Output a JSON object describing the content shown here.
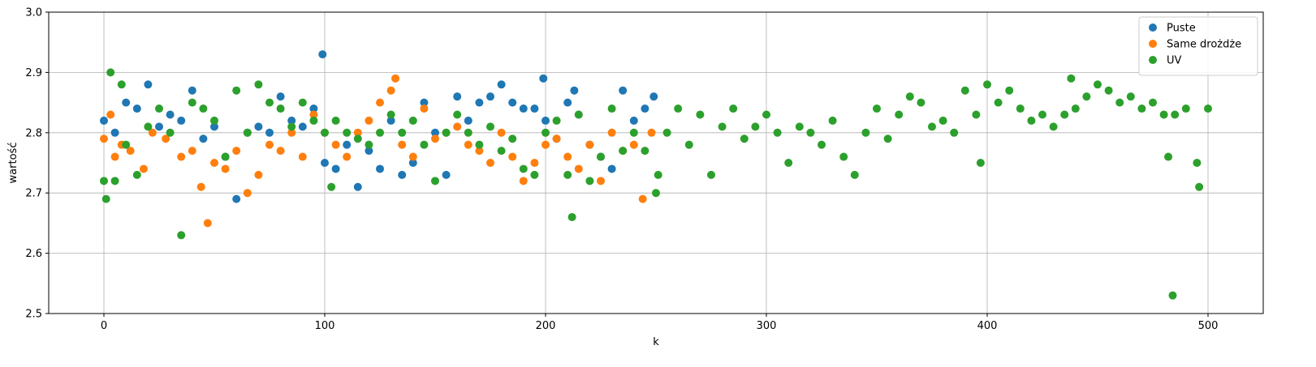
{
  "chart_data": {
    "type": "scatter",
    "title": "",
    "xlabel": "k",
    "ylabel": "wartość",
    "xlim": [
      -25,
      525
    ],
    "ylim": [
      2.5,
      3.0
    ],
    "xticks": [
      "0",
      "100",
      "200",
      "300",
      "400",
      "500"
    ],
    "yticks": [
      "2.5",
      "2.6",
      "2.7",
      "2.8",
      "2.9",
      "3.0"
    ],
    "grid": true,
    "legend_position": "top-right",
    "colors": {
      "Puste": "#1f77b4",
      "Same drożdże": "#ff7f0e",
      "UV": "#2ca02c"
    },
    "series": [
      {
        "name": "Puste",
        "x": [
          0,
          5,
          10,
          15,
          20,
          25,
          30,
          35,
          40,
          45,
          50,
          55,
          60,
          65,
          70,
          75,
          80,
          85,
          90,
          95,
          99,
          100,
          105,
          110,
          115,
          120,
          125,
          130,
          135,
          140,
          145,
          150,
          155,
          160,
          165,
          170,
          175,
          180,
          185,
          190,
          195,
          199,
          200,
          205,
          210,
          213,
          215,
          220,
          225,
          230,
          235,
          240,
          245,
          249
        ],
        "y": [
          2.82,
          2.8,
          2.85,
          2.84,
          2.88,
          2.81,
          2.83,
          2.82,
          2.87,
          2.79,
          2.81,
          2.76,
          2.69,
          2.8,
          2.81,
          2.8,
          2.86,
          2.82,
          2.81,
          2.84,
          2.93,
          2.75,
          2.74,
          2.78,
          2.71,
          2.77,
          2.74,
          2.82,
          2.73,
          2.75,
          2.85,
          2.8,
          2.73,
          2.86,
          2.82,
          2.85,
          2.86,
          2.88,
          2.85,
          2.84,
          2.84,
          2.89,
          2.82,
          2.79,
          2.85,
          2.87,
          2.83,
          2.78,
          2.76,
          2.74,
          2.87,
          2.82,
          2.84,
          2.86
        ]
      },
      {
        "name": "Same drożdże",
        "x": [
          0,
          3,
          5,
          8,
          12,
          18,
          22,
          28,
          35,
          40,
          44,
          47,
          50,
          55,
          60,
          65,
          70,
          75,
          80,
          85,
          90,
          95,
          100,
          105,
          110,
          115,
          120,
          125,
          130,
          132,
          135,
          140,
          145,
          150,
          155,
          160,
          165,
          170,
          175,
          180,
          185,
          190,
          195,
          200,
          205,
          210,
          215,
          220,
          225,
          230,
          235,
          240,
          244,
          248
        ],
        "y": [
          2.79,
          2.83,
          2.76,
          2.78,
          2.77,
          2.74,
          2.8,
          2.79,
          2.76,
          2.77,
          2.71,
          2.65,
          2.75,
          2.74,
          2.77,
          2.7,
          2.73,
          2.78,
          2.77,
          2.8,
          2.76,
          2.83,
          2.8,
          2.78,
          2.76,
          2.8,
          2.82,
          2.85,
          2.87,
          2.89,
          2.78,
          2.76,
          2.84,
          2.79,
          2.8,
          2.81,
          2.78,
          2.77,
          2.75,
          2.8,
          2.76,
          2.72,
          2.75,
          2.78,
          2.79,
          2.76,
          2.74,
          2.78,
          2.72,
          2.8,
          2.77,
          2.78,
          2.69,
          2.8
        ]
      },
      {
        "name": "UV",
        "x": [
          0,
          1,
          3,
          5,
          8,
          10,
          15,
          20,
          25,
          30,
          35,
          40,
          45,
          50,
          55,
          60,
          65,
          70,
          75,
          80,
          85,
          90,
          95,
          100,
          103,
          105,
          110,
          115,
          120,
          125,
          130,
          135,
          140,
          145,
          150,
          155,
          160,
          165,
          170,
          175,
          180,
          185,
          190,
          195,
          200,
          205,
          210,
          212,
          215,
          220,
          225,
          230,
          235,
          240,
          245,
          250,
          251,
          255,
          260,
          265,
          270,
          275,
          280,
          285,
          290,
          295,
          300,
          305,
          310,
          315,
          320,
          325,
          330,
          335,
          340,
          345,
          350,
          355,
          360,
          365,
          370,
          375,
          380,
          385,
          390,
          395,
          397,
          400,
          405,
          410,
          415,
          420,
          425,
          430,
          435,
          438,
          440,
          445,
          450,
          455,
          460,
          465,
          470,
          475,
          480,
          482,
          484,
          485,
          490,
          495,
          496,
          500
        ],
        "y": [
          2.72,
          2.69,
          2.9,
          2.72,
          2.88,
          2.78,
          2.73,
          2.81,
          2.84,
          2.8,
          2.63,
          2.85,
          2.84,
          2.82,
          2.76,
          2.87,
          2.8,
          2.88,
          2.85,
          2.84,
          2.81,
          2.85,
          2.82,
          2.8,
          2.71,
          2.82,
          2.8,
          2.79,
          2.78,
          2.8,
          2.83,
          2.8,
          2.82,
          2.78,
          2.72,
          2.8,
          2.83,
          2.8,
          2.78,
          2.81,
          2.77,
          2.79,
          2.74,
          2.73,
          2.8,
          2.82,
          2.73,
          2.66,
          2.83,
          2.72,
          2.76,
          2.84,
          2.77,
          2.8,
          2.77,
          2.7,
          2.73,
          2.8,
          2.84,
          2.78,
          2.83,
          2.73,
          2.81,
          2.84,
          2.79,
          2.81,
          2.83,
          2.8,
          2.75,
          2.81,
          2.8,
          2.78,
          2.82,
          2.76,
          2.73,
          2.8,
          2.84,
          2.79,
          2.83,
          2.86,
          2.85,
          2.81,
          2.82,
          2.8,
          2.87,
          2.83,
          2.75,
          2.88,
          2.85,
          2.87,
          2.84,
          2.82,
          2.83,
          2.81,
          2.83,
          2.89,
          2.84,
          2.86,
          2.88,
          2.87,
          2.85,
          2.86,
          2.84,
          2.85,
          2.83,
          2.76,
          2.53,
          2.83,
          2.84,
          2.75,
          2.71,
          2.84
        ]
      }
    ]
  }
}
